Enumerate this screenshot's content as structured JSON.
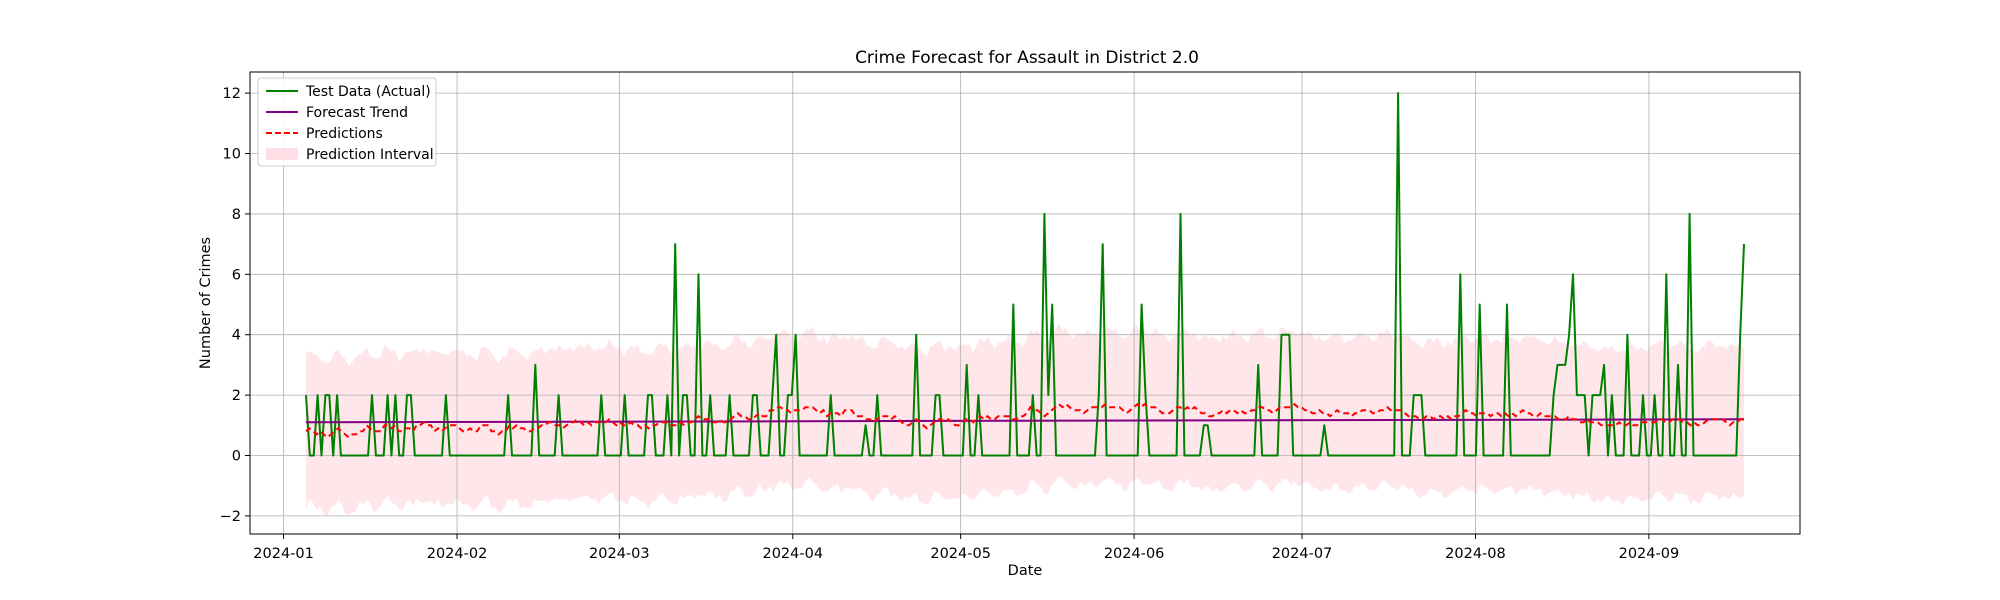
{
  "chart_data": {
    "type": "line",
    "title": "Crime Forecast for Assault in District 2.0",
    "xlabel": "Date",
    "ylabel": "Number of Crimes",
    "x_start": "2024-01-05",
    "x_end": "2024-09-18",
    "xlim": [
      "2023-12-26",
      "2024-09-28"
    ],
    "ylim": [
      -2.6,
      12.7
    ],
    "x_ticks": [
      {
        "date": "2024-01-01",
        "label": "2024-01"
      },
      {
        "date": "2024-02-01",
        "label": "2024-02"
      },
      {
        "date": "2024-03-01",
        "label": "2024-03"
      },
      {
        "date": "2024-04-01",
        "label": "2024-04"
      },
      {
        "date": "2024-05-01",
        "label": "2024-05"
      },
      {
        "date": "2024-06-01",
        "label": "2024-06"
      },
      {
        "date": "2024-07-01",
        "label": "2024-07"
      },
      {
        "date": "2024-08-01",
        "label": "2024-08"
      },
      {
        "date": "2024-09-01",
        "label": "2024-09"
      }
    ],
    "y_ticks": [
      -2,
      0,
      2,
      4,
      6,
      8,
      10,
      12
    ],
    "grid": true,
    "legend_position": "top-left",
    "legend": [
      {
        "label": "Test Data (Actual)",
        "style": "line",
        "color": "#008000"
      },
      {
        "label": "Forecast Trend",
        "style": "line",
        "color": "#800080"
      },
      {
        "label": "Predictions",
        "style": "dashed",
        "color": "#ff0000"
      },
      {
        "label": "Prediction Interval",
        "style": "patch",
        "color": "#ffc0cb"
      }
    ],
    "series": [
      {
        "name": "Test Data (Actual)",
        "color": "#008000",
        "values": [
          2,
          0,
          0,
          2,
          0,
          2,
          2,
          0,
          2,
          0,
          0,
          0,
          0,
          0,
          0,
          0,
          0,
          2,
          0,
          0,
          0,
          2,
          0,
          2,
          0,
          0,
          2,
          2,
          0,
          0,
          0,
          0,
          0,
          0,
          0,
          0,
          2,
          0,
          0,
          0,
          0,
          0,
          0,
          0,
          0,
          0,
          0,
          0,
          0,
          0,
          0,
          0,
          2,
          0,
          0,
          0,
          0,
          0,
          0,
          3,
          0,
          0,
          0,
          0,
          0,
          2,
          0,
          0,
          0,
          0,
          0,
          0,
          0,
          0,
          0,
          0,
          2,
          0,
          0,
          0,
          0,
          0,
          2,
          0,
          0,
          0,
          0,
          0,
          2,
          2,
          0,
          0,
          0,
          2,
          0,
          7,
          0,
          2,
          2,
          0,
          0,
          6,
          0,
          0,
          2,
          0,
          0,
          0,
          0,
          2,
          0,
          0,
          0,
          0,
          0,
          2,
          2,
          0,
          0,
          0,
          2,
          4,
          0,
          0,
          2,
          2,
          4,
          0,
          0,
          0,
          0,
          0,
          0,
          0,
          0,
          2,
          0,
          0,
          0,
          0,
          0,
          0,
          0,
          0,
          1,
          0,
          0,
          2,
          0,
          0,
          0,
          0,
          0,
          0,
          0,
          0,
          0,
          4,
          0,
          0,
          0,
          0,
          2,
          2,
          0,
          0,
          0,
          0,
          0,
          0,
          3,
          0,
          0,
          2,
          0,
          0,
          0,
          0,
          0,
          0,
          0,
          0,
          5,
          0,
          0,
          0,
          0,
          2,
          0,
          0,
          8,
          2,
          5,
          0,
          0,
          0,
          0,
          0,
          0,
          0,
          0,
          0,
          0,
          0,
          2,
          7,
          0,
          0,
          0,
          0,
          0,
          0,
          0,
          0,
          0,
          5,
          2,
          0,
          0,
          0,
          0,
          0,
          0,
          0,
          0,
          8,
          0,
          0,
          0,
          0,
          0,
          1,
          1,
          0,
          0,
          0,
          0,
          0,
          0,
          0,
          0,
          0,
          0,
          0,
          0,
          3,
          0,
          0,
          0,
          0,
          0,
          4,
          4,
          4,
          0,
          0,
          0,
          0,
          0,
          0,
          0,
          0,
          1,
          0,
          0,
          0,
          0,
          0,
          0,
          0,
          0,
          0,
          0,
          0,
          0,
          0,
          0,
          0,
          0,
          0,
          0,
          12,
          0,
          0,
          0,
          2,
          2,
          2,
          0,
          0,
          0,
          0,
          0,
          0,
          0,
          0,
          0,
          6,
          0,
          0,
          0,
          0,
          5,
          0,
          0,
          0,
          0,
          0,
          0,
          5,
          0,
          0,
          0,
          0,
          0,
          0,
          0,
          0,
          0,
          0,
          0,
          2,
          3,
          3,
          3,
          4,
          6,
          2,
          2,
          2,
          0,
          2,
          2,
          2,
          3,
          0,
          2,
          0,
          0,
          0,
          4,
          0,
          0,
          0,
          2,
          0,
          0,
          2,
          0,
          0,
          6,
          0,
          0,
          3,
          0,
          0,
          8,
          0,
          0,
          0,
          0,
          0,
          0,
          0,
          0,
          0,
          0,
          0,
          0,
          4,
          7
        ]
      },
      {
        "name": "Forecast Trend",
        "color": "#800080",
        "values": [
          1.1,
          1.2
        ]
      },
      {
        "name": "Predictions",
        "color": "#ff0000",
        "values": [
          0.8,
          0.9,
          0.8,
          0.7,
          0.8,
          0.7,
          0.6,
          0.7,
          0.8,
          0.9,
          0.8,
          0.7,
          0.6,
          0.7,
          0.7,
          0.8,
          0.8,
          1.0,
          0.9,
          0.8,
          0.8,
          0.8,
          1.0,
          1.0,
          0.9,
          1.0,
          0.8,
          0.8,
          0.9,
          0.9,
          0.8,
          1.0,
          1.0,
          1.1,
          1.0,
          1.0,
          0.8,
          0.9,
          0.8,
          0.9,
          1.0,
          1.0,
          1.0,
          0.9,
          0.8,
          0.8,
          0.9,
          0.8,
          0.8,
          1.0,
          1.0,
          1.0,
          0.8,
          0.8,
          0.7,
          0.8,
          0.8,
          1.0,
          0.9,
          1.0,
          0.9,
          0.9,
          0.8,
          0.8,
          0.9,
          0.9,
          1.0,
          1.0,
          1.1,
          1.1,
          1.0,
          1.0,
          0.9,
          1.0,
          1.1,
          1.1,
          1.2,
          1.1,
          1.0,
          1.1,
          1.0,
          1.1,
          1.1,
          1.1,
          1.1,
          1.2,
          1.1,
          1.0,
          1.1,
          1.0,
          1.0,
          1.1,
          1.0,
          1.0,
          0.9,
          1.0,
          0.9,
          1.0,
          1.0,
          1.1,
          1.1,
          1.1,
          1.0,
          1.0,
          1.0,
          1.1,
          1.0,
          1.1,
          1.1,
          1.2,
          1.3,
          1.2,
          1.2,
          1.2,
          1.1,
          1.1,
          1.2,
          1.1,
          1.1,
          1.2,
          1.3,
          1.4,
          1.3,
          1.3,
          1.2,
          1.2,
          1.3,
          1.4,
          1.3,
          1.3,
          1.5,
          1.5,
          1.6,
          1.6,
          1.5,
          1.5,
          1.4,
          1.5,
          1.5,
          1.5,
          1.6,
          1.6,
          1.6,
          1.5,
          1.4,
          1.5,
          1.3,
          1.4,
          1.4,
          1.4,
          1.3,
          1.5,
          1.5,
          1.5,
          1.3,
          1.3,
          1.3,
          1.2,
          1.2,
          1.1,
          1.2,
          1.3,
          1.3,
          1.3,
          1.2,
          1.3,
          1.2,
          1.1,
          1.0,
          1.0,
          1.1,
          1.2,
          1.1,
          1.0,
          0.9,
          1.0,
          1.1,
          1.2,
          1.2,
          1.1,
          1.2,
          1.1,
          1.0,
          1.0,
          1.1,
          1.2,
          1.2,
          1.1,
          1.2,
          1.3,
          1.2,
          1.3,
          1.2,
          1.2,
          1.3,
          1.3,
          1.3,
          1.3,
          1.2,
          1.2,
          1.3,
          1.3,
          1.4,
          1.6,
          1.5,
          1.5,
          1.4,
          1.3,
          1.4,
          1.5,
          1.6,
          1.7,
          1.6,
          1.7,
          1.6,
          1.5,
          1.5,
          1.5,
          1.4,
          1.5,
          1.6,
          1.6,
          1.6,
          1.6,
          1.7,
          1.6,
          1.6,
          1.6,
          1.6,
          1.5,
          1.4,
          1.5,
          1.6,
          1.7,
          1.6,
          1.7,
          1.6,
          1.6,
          1.6,
          1.5,
          1.4,
          1.4,
          1.4,
          1.5,
          1.6,
          1.6,
          1.5,
          1.6,
          1.5,
          1.6,
          1.5,
          1.4,
          1.4,
          1.3,
          1.3,
          1.4,
          1.4,
          1.5,
          1.4,
          1.5,
          1.5,
          1.4,
          1.5,
          1.4,
          1.4,
          1.5,
          1.5,
          1.6,
          1.6,
          1.5,
          1.5,
          1.4,
          1.5,
          1.6,
          1.6,
          1.6,
          1.6,
          1.7,
          1.6,
          1.6,
          1.5,
          1.5,
          1.4,
          1.4,
          1.5,
          1.4,
          1.4,
          1.3,
          1.4,
          1.5,
          1.4,
          1.4,
          1.4,
          1.3,
          1.4,
          1.4,
          1.5,
          1.5,
          1.5,
          1.4,
          1.4,
          1.5,
          1.5,
          1.6,
          1.5,
          1.5,
          1.5,
          1.5,
          1.4,
          1.3,
          1.3,
          1.3,
          1.2,
          1.2,
          1.3,
          1.3,
          1.2,
          1.3,
          1.3,
          1.2,
          1.3,
          1.2,
          1.3,
          1.3,
          1.4,
          1.5,
          1.4,
          1.4,
          1.3,
          1.4,
          1.4,
          1.4,
          1.3,
          1.4,
          1.4,
          1.3,
          1.4,
          1.3,
          1.4,
          1.3,
          1.4,
          1.5,
          1.4,
          1.4,
          1.3,
          1.3,
          1.4,
          1.3,
          1.3,
          1.3,
          1.3,
          1.2,
          1.2,
          1.2,
          1.3,
          1.2,
          1.2,
          1.1,
          1.1,
          1.2,
          1.1,
          1.1,
          1.1,
          1.0,
          1.0,
          1.0,
          1.0,
          1.0,
          1.1,
          1.0,
          1.0,
          1.1,
          1.0,
          1.0,
          1.1,
          1.1,
          1.1,
          1.1,
          1.1,
          1.2,
          1.2,
          1.1,
          1.1,
          1.2,
          1.2,
          1.2,
          1.1,
          1.1,
          1.0,
          1.1,
          1.0,
          1.0,
          1.1,
          1.2,
          1.2,
          1.2,
          1.2,
          1.2,
          1.1,
          1.0,
          1.1,
          1.1,
          1.2,
          1.2
        ],
        "dashed": true
      },
      {
        "name": "Prediction Interval",
        "color": "#ffc0cb",
        "interval_width": 2.5
      }
    ]
  }
}
